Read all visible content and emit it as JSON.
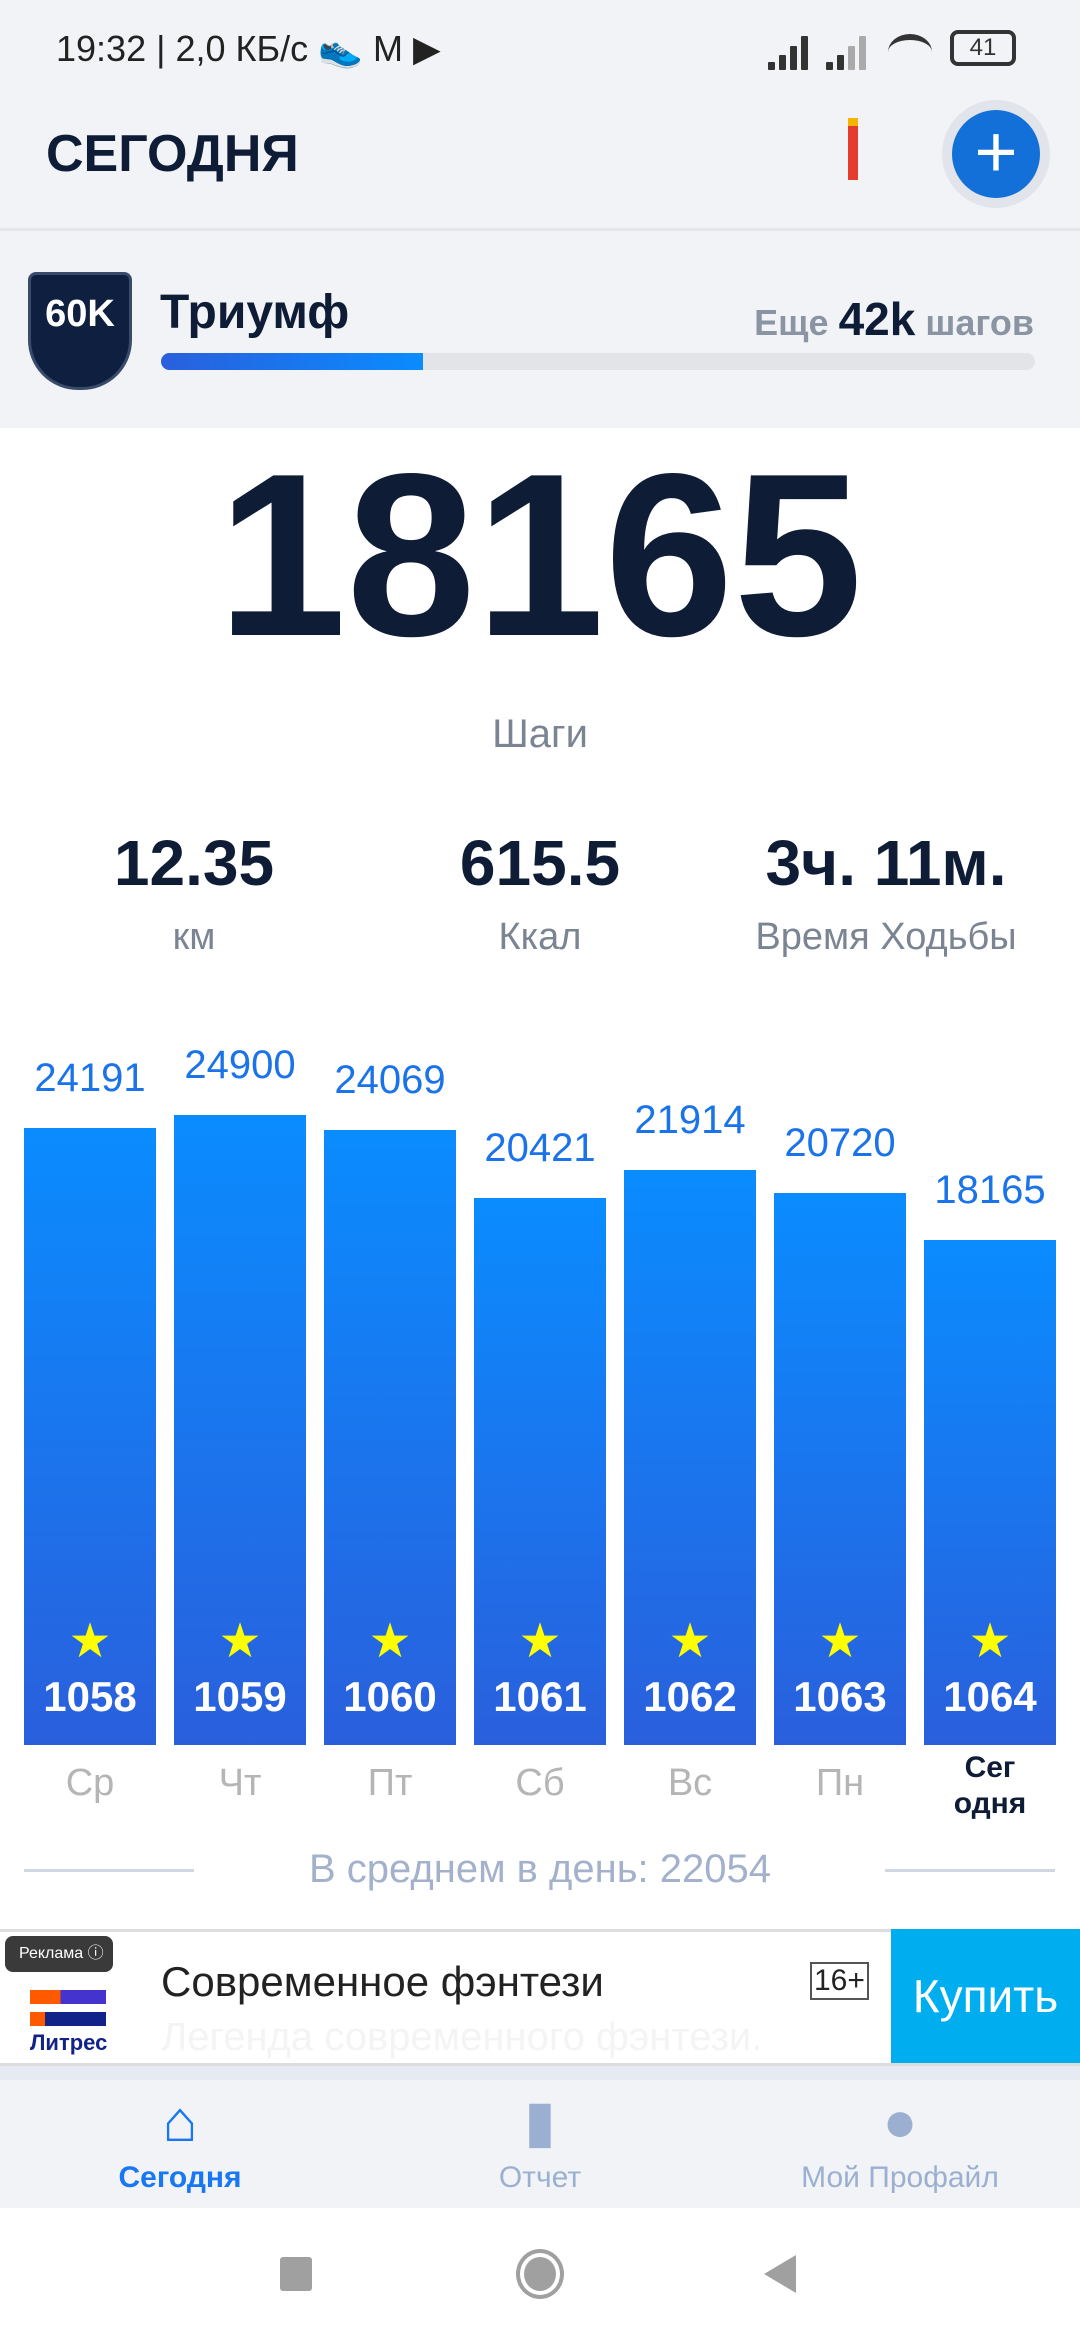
{
  "status_bar": {
    "time": "19:32",
    "speed": "2,0 КБ/с",
    "battery": "41"
  },
  "header": {
    "title": "СЕГОДНЯ",
    "add_icon": "plus-icon"
  },
  "achievement": {
    "badge": "60K",
    "name": "Триумф",
    "remaining_prefix": "Еще",
    "remaining_value": "42k",
    "remaining_suffix": "шагов",
    "progress": 0.3
  },
  "steps": {
    "value": "18165",
    "label": "Шаги"
  },
  "stats": [
    {
      "value": "12.35",
      "label": "км"
    },
    {
      "value": "615.5",
      "label": "Ккал"
    },
    {
      "value": "3ч. 11м.",
      "label": "Время Ходьбы"
    }
  ],
  "chart_data": {
    "type": "bar",
    "categories": [
      "Ср",
      "Чт",
      "Пт",
      "Сб",
      "Вс",
      "Пн",
      "Сег одня"
    ],
    "values": [
      24191,
      24900,
      24069,
      20421,
      21914,
      20720,
      18165
    ],
    "badges": [
      "1058",
      "1059",
      "1060",
      "1061",
      "1062",
      "1063",
      "1064"
    ],
    "colors": {
      "bar": "#0a8cff",
      "label": "#1a73e8",
      "today_label": "#0e1c36",
      "star": "#ffff00"
    }
  },
  "average": "В среднем в день: 22054",
  "ad": {
    "tag": "Реклама",
    "brand": "Литрес",
    "title": "Современное фэнтези",
    "subtitle": "Легенда современного фэнтези.",
    "age": "16+",
    "button": "Купить"
  },
  "nav": [
    {
      "label": "Сегодня",
      "icon": "home-icon",
      "active": true
    },
    {
      "label": "Отчет",
      "icon": "bar-chart-icon"
    },
    {
      "label": "Мой Профайл",
      "icon": "person-icon"
    }
  ]
}
